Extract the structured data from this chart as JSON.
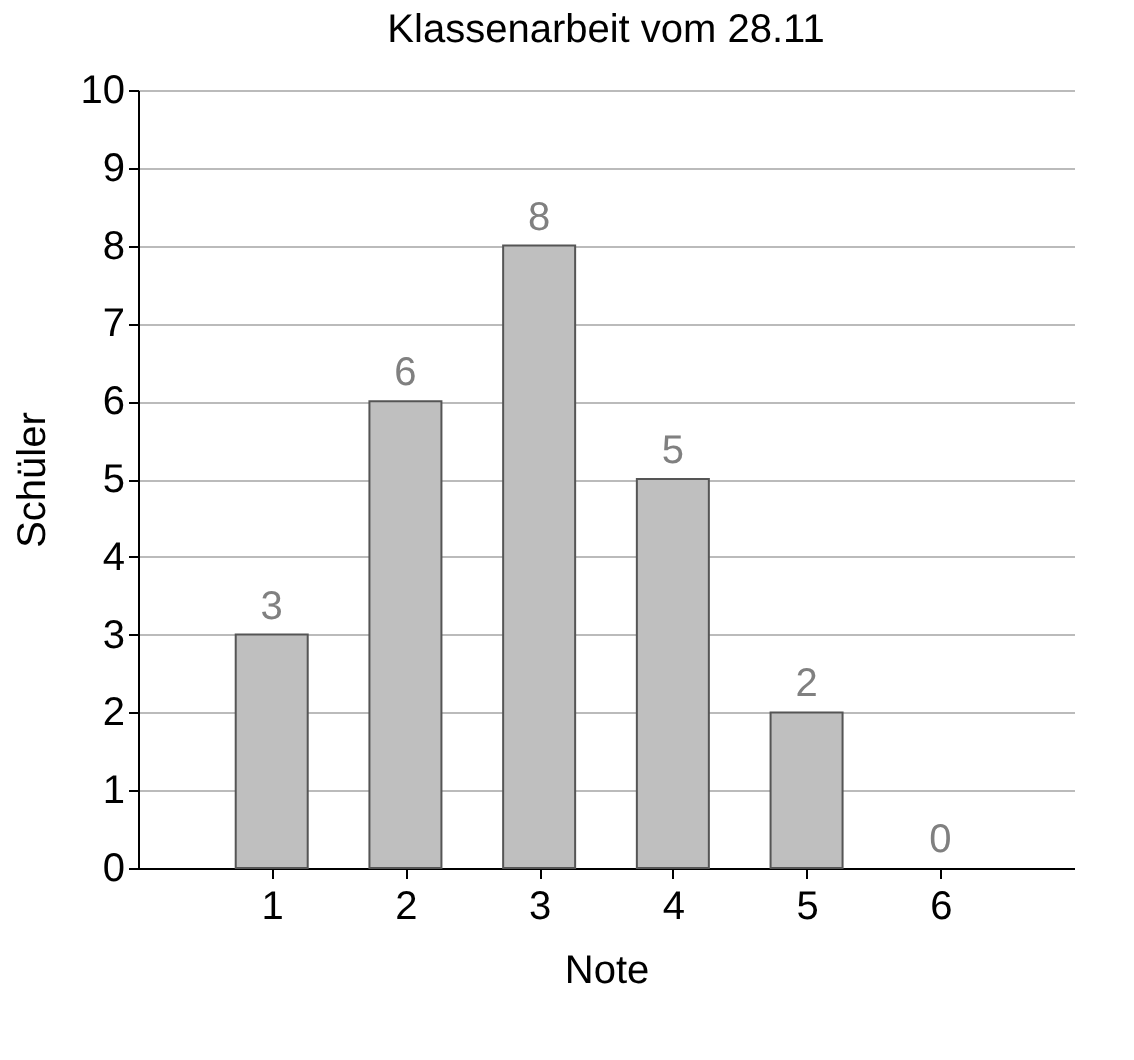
{
  "chart_data": {
    "type": "bar",
    "title": "Klassenarbeit vom 28.11",
    "xlabel": "Note",
    "ylabel": "Schüler",
    "x": [
      1,
      2,
      3,
      4,
      5,
      6
    ],
    "values": [
      3,
      6,
      8,
      5,
      2,
      0
    ],
    "color": "#bfbfbf",
    "xlim": [
      0,
      7
    ],
    "xticks": [
      1,
      2,
      3,
      4,
      5,
      6
    ],
    "ylim": [
      0,
      10
    ],
    "yticks": [
      0,
      1,
      2,
      3,
      4,
      5,
      6,
      7,
      8,
      9,
      10
    ],
    "grid": "y",
    "data_labels": true
  }
}
